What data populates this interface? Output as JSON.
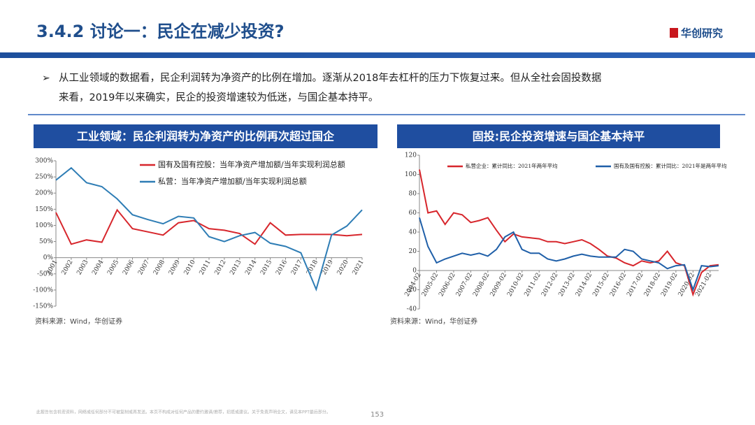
{
  "header": {
    "title": "3.4.2 讨论一：民企在减少投资?",
    "logo": "华创研究"
  },
  "bullet": [
    "从工业领域的数据看，民企利润转为净资产的比例在增加。逐渐从2018年去杠杆的压力下恢复过来。但从全社会固投数据",
    "来看，2019年以来确实，民企的投资增速较为低迷，与国企基本持平。"
  ],
  "chart_data": [
    {
      "type": "line",
      "title": "工业领域：民企利润转为净资产的比例再次超过国企",
      "source": "资料来源：Wind，华创证券",
      "categories": [
        "2001",
        "2002",
        "2003",
        "2004",
        "2005",
        "2006",
        "2007",
        "2008",
        "2009",
        "2010",
        "2011",
        "2012",
        "2013",
        "2014",
        "2015",
        "2016",
        "2017",
        "2018",
        "2019",
        "2020",
        "2021"
      ],
      "series": [
        {
          "name": "国有及国有控股：当年净资产增加额/当年实现利润总额",
          "color": "#d7262c",
          "values": [
            140,
            42,
            55,
            48,
            148,
            90,
            80,
            70,
            108,
            115,
            90,
            85,
            75,
            42,
            108,
            70,
            72,
            72,
            72,
            68,
            72
          ]
        },
        {
          "name": "私营：当年净资产增加额/当年实现利润总额",
          "color": "#2e7db5",
          "values": [
            240,
            278,
            232,
            220,
            182,
            133,
            118,
            105,
            128,
            123,
            65,
            50,
            68,
            78,
            45,
            35,
            15,
            -98,
            70,
            98,
            148
          ]
        }
      ],
      "ylim": [
        -150,
        300
      ],
      "yticks": [
        {
          "value": -150,
          "label": "-150%"
        },
        {
          "value": -100,
          "label": "-100%"
        },
        {
          "value": -50,
          "label": "-50%"
        },
        {
          "value": 0,
          "label": "0%"
        },
        {
          "value": 50,
          "label": "50%"
        },
        {
          "value": 100,
          "label": "100%"
        },
        {
          "value": 150,
          "label": "150%"
        },
        {
          "value": 200,
          "label": "200%"
        },
        {
          "value": 250,
          "label": "250%"
        },
        {
          "value": 300,
          "label": "300%"
        }
      ],
      "legend": "upper right"
    },
    {
      "type": "line",
      "title": "固投:民企投资增速与国企基本持平",
      "source": "资料来源：Wind，华创证券",
      "categories": [
        "2004-02",
        null,
        "2005-02",
        null,
        "2006-02",
        null,
        "2007-02",
        null,
        "2008-02",
        null,
        "2009-02",
        null,
        "2010-02",
        null,
        "2011-02",
        null,
        "2012-02",
        null,
        "2013-02",
        null,
        "2014-02",
        null,
        "2015-02",
        null,
        "2016-02",
        null,
        "2017-02",
        null,
        "2018-02",
        null,
        "2019-02",
        null,
        "2020-02",
        null,
        "2021-02",
        null
      ],
      "series": [
        {
          "name": "私营企业：累计同比：2021年两年平均",
          "color": "#d7262c",
          "values": [
            105,
            60,
            62,
            48,
            60,
            58,
            50,
            52,
            55,
            42,
            30,
            38,
            35,
            34,
            33,
            30,
            30,
            28,
            30,
            32,
            28,
            22,
            15,
            13,
            8,
            5,
            10,
            8,
            10,
            20,
            8,
            5,
            -25,
            -2,
            5,
            6
          ]
        },
        {
          "name": "国有及国有控股：累计同比：2021年是两年平均",
          "color": "#1f5fa8",
          "values": [
            55,
            25,
            8,
            12,
            15,
            18,
            16,
            18,
            15,
            22,
            35,
            40,
            22,
            18,
            18,
            12,
            10,
            12,
            15,
            17,
            15,
            14,
            14,
            14,
            22,
            20,
            12,
            10,
            8,
            2,
            5,
            6,
            -20,
            5,
            4,
            5
          ]
        }
      ],
      "ylim": [
        -40,
        120
      ],
      "yticks": [
        -40,
        -20,
        0,
        20,
        40,
        60,
        80,
        100,
        120
      ],
      "legend": "upper center"
    }
  ],
  "footer": {
    "disclaimer": "此报告包含机密资料，网络或任何部分不可被复制或再发送。本页不构成对任何产品的要约邀请/推荐，招揽或建议。关于免责声明全文，请见本PPT最后部分。",
    "page": "153"
  }
}
